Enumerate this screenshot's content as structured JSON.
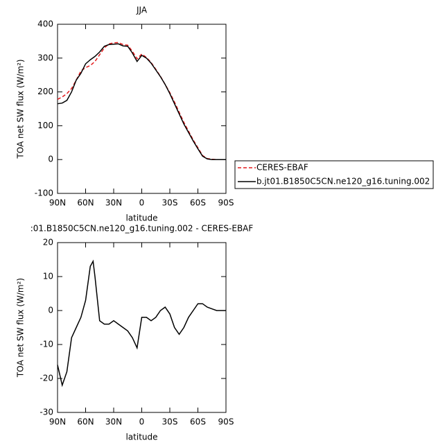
{
  "chart_data": [
    {
      "type": "line",
      "title": "JJA",
      "xlabel": "latitude",
      "ylabel": "TOA net SW flux (W/m²)",
      "x": [
        90,
        85,
        80,
        75,
        70,
        65,
        60,
        55,
        50,
        45,
        40,
        35,
        30,
        25,
        20,
        15,
        10,
        5,
        0,
        -5,
        -10,
        -15,
        -20,
        -25,
        -30,
        -35,
        -40,
        -45,
        -50,
        -55,
        -60,
        -65,
        -70,
        -75,
        -80,
        -85,
        -90
      ],
      "series": [
        {
          "name": "CERES-EBAF",
          "color": "#e41a1c",
          "dashed": true,
          "values": [
            178,
            185,
            195,
            210,
            235,
            262,
            272,
            278,
            290,
            310,
            330,
            342,
            345,
            346,
            340,
            338,
            320,
            298,
            312,
            302,
            287,
            267,
            246,
            222,
            198,
            170,
            140,
            110,
            84,
            58,
            35,
            12,
            3,
            1,
            0,
            0,
            0
          ]
        },
        {
          "name": "b.jt01.B1850C5CN.ne120_g16.tuning.002",
          "color": "#000000",
          "dashed": false,
          "values": [
            165,
            167,
            175,
            200,
            235,
            255,
            283,
            295,
            305,
            318,
            335,
            340,
            341,
            342,
            336,
            335,
            315,
            290,
            308,
            300,
            285,
            265,
            245,
            222,
            195,
            165,
            135,
            105,
            80,
            55,
            32,
            10,
            2,
            0,
            0,
            0,
            0
          ]
        }
      ],
      "xlim": [
        90,
        -90
      ],
      "xticks": [
        {
          "value": 90,
          "label": "90N"
        },
        {
          "value": 60,
          "label": "60N"
        },
        {
          "value": 30,
          "label": "30N"
        },
        0,
        {
          "value": -30,
          "label": "30S"
        },
        {
          "value": -60,
          "label": "60S"
        },
        {
          "value": -90,
          "label": "90S"
        }
      ],
      "ylim": [
        -100,
        400
      ],
      "yticks": [
        -100,
        0,
        100,
        200,
        300,
        400
      ],
      "legend": "right"
    },
    {
      "type": "line",
      "title": ":01.B1850C5CN.ne120_g16.tuning.002 - CERES-EBAF",
      "xlabel": "latitude",
      "ylabel": "TOA net SW flux (W/m²)",
      "x": [
        90,
        85,
        80,
        75,
        70,
        65,
        60,
        55,
        52,
        50,
        45,
        40,
        35,
        30,
        25,
        20,
        15,
        10,
        5,
        0,
        -5,
        -10,
        -15,
        -20,
        -25,
        -30,
        -35,
        -40,
        -45,
        -50,
        -55,
        -60,
        -65,
        -70,
        -75,
        -80,
        -85,
        -90
      ],
      "color": "#000000",
      "values": [
        -16,
        -22,
        -18,
        -8,
        -5,
        -2,
        3,
        13,
        14.5,
        10,
        -3,
        -4,
        -4,
        -3,
        -4,
        -5,
        -6,
        -8,
        -11,
        -2,
        -2,
        -3,
        -2,
        0,
        1,
        -1,
        -5,
        -7,
        -5,
        -2,
        0,
        2,
        2,
        1,
        0.5,
        0,
        0,
        0
      ],
      "xlim": [
        90,
        -90
      ],
      "xticks": [
        {
          "value": 90,
          "label": "90N"
        },
        {
          "value": 60,
          "label": "60N"
        },
        {
          "value": 30,
          "label": "30N"
        },
        0,
        {
          "value": -30,
          "label": "30S"
        },
        {
          "value": -60,
          "label": "60S"
        },
        {
          "value": -90,
          "label": "90S"
        }
      ],
      "ylim": [
        -30,
        20
      ],
      "yticks": [
        -30,
        -20,
        -10,
        0,
        10,
        20
      ]
    }
  ]
}
